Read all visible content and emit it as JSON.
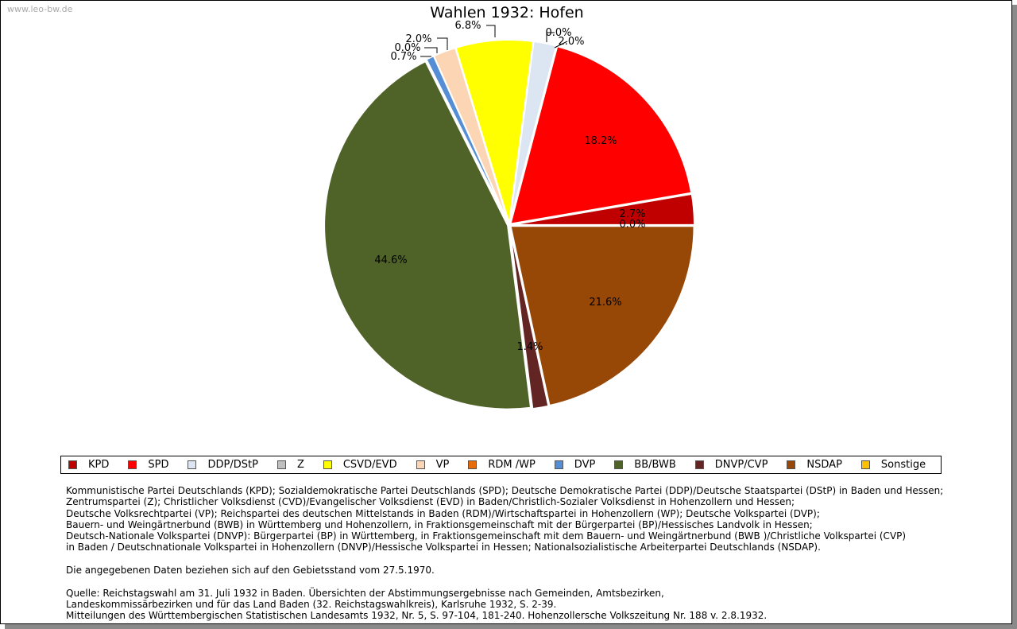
{
  "watermark": "www.leo-bw.de",
  "chart_data": {
    "type": "pie",
    "title": "Wahlen 1932: Hofen",
    "series": [
      {
        "name": "KPD",
        "value": 2.7,
        "label": "2.7%",
        "color": "#c00000"
      },
      {
        "name": "SPD",
        "value": 18.2,
        "label": "18.2%",
        "color": "#ff0000"
      },
      {
        "name": "DDP/DStP",
        "value": 2.0,
        "label": "2.0%",
        "color": "#dce6f2"
      },
      {
        "name": "Z",
        "value": 0.0,
        "label": "0.0%",
        "color": "#bfbfbf"
      },
      {
        "name": "CSVD/EVD",
        "value": 6.8,
        "label": "6.8%",
        "color": "#ffff00"
      },
      {
        "name": "VP",
        "value": 2.0,
        "label": "2.0%",
        "color": "#fcd5b5"
      },
      {
        "name": "RDM /WP",
        "value": 0.0,
        "label": "0.0%",
        "color": "#e46c0a"
      },
      {
        "name": "DVP",
        "value": 0.7,
        "label": "0.7%",
        "color": "#558ed5"
      },
      {
        "name": "BB/BWB",
        "value": 44.6,
        "label": "44.6%",
        "color": "#4f6228"
      },
      {
        "name": "DNVP/CVP",
        "value": 1.4,
        "label": "1.4%",
        "color": "#632523"
      },
      {
        "name": "NSDAP",
        "value": 21.6,
        "label": "21.6%",
        "color": "#974706"
      },
      {
        "name": "Sonstige",
        "value": 0.0,
        "label": "0.0%",
        "color": "#ffc000"
      }
    ],
    "legend_position": "bottom"
  },
  "notes": [
    "Kommunistische Partei Deutschlands (KPD); Sozialdemokratische Partei Deutschlands (SPD); Deutsche Demokratische Partei (DDP)/Deutsche Staatspartei (DStP) in Baden und Hessen;",
    "Zentrumspartei (Z); Christlicher Volksdienst (CVD)/Evangelischer Volksdienst (EVD) in Baden/Christlich-Sozialer Volksdienst in Hohenzollern und Hessen;",
    "Deutsche Volksrechtpartei (VP); Reichspartei des deutschen Mittelstands in Baden (RDM)/Wirtschaftspartei in Hohenzollern (WP); Deutsche Volkspartei (DVP);",
    "Bauern- und Weingärtnerbund (BWB) in Württemberg und Hohenzollern, in Fraktionsgemeinschaft mit der Bürgerpartei (BP)/Hessisches Landvolk in Hessen;",
    "Deutsch-Nationale Volkspartei (DNVP): Bürgerpartei (BP) in Württemberg, in Fraktionsgemeinschaft mit dem Bauern- und Weingärtnerbund (BWB )/Christliche Volkspartei (CVP)",
    "in Baden / Deutschnationale Volkspartei in Hohenzollern (DNVP)/Hessische Volkspartei in Hessen; Nationalsozialistische Arbeiterpartei Deutschlands (NSDAP).",
    "",
    "Die angegebenen Daten beziehen sich auf den Gebietsstand vom 27.5.1970.",
    "",
    "Quelle: Reichstagswahl am 31. Juli 1932 in Baden. Übersichten der Abstimmungsergebnisse nach Gemeinden, Amtsbezirken,",
    "Landeskommissärbezirken und für das Land Baden (32. Reichstagswahlkreis), Karlsruhe 1932, S. 2-39.",
    "Mitteilungen des Württembergischen Statistischen Landesamts 1932, Nr. 5, S. 97-104, 181-240. Hohenzollersche Volkszeitung Nr. 188 v. 2.8.1932."
  ]
}
